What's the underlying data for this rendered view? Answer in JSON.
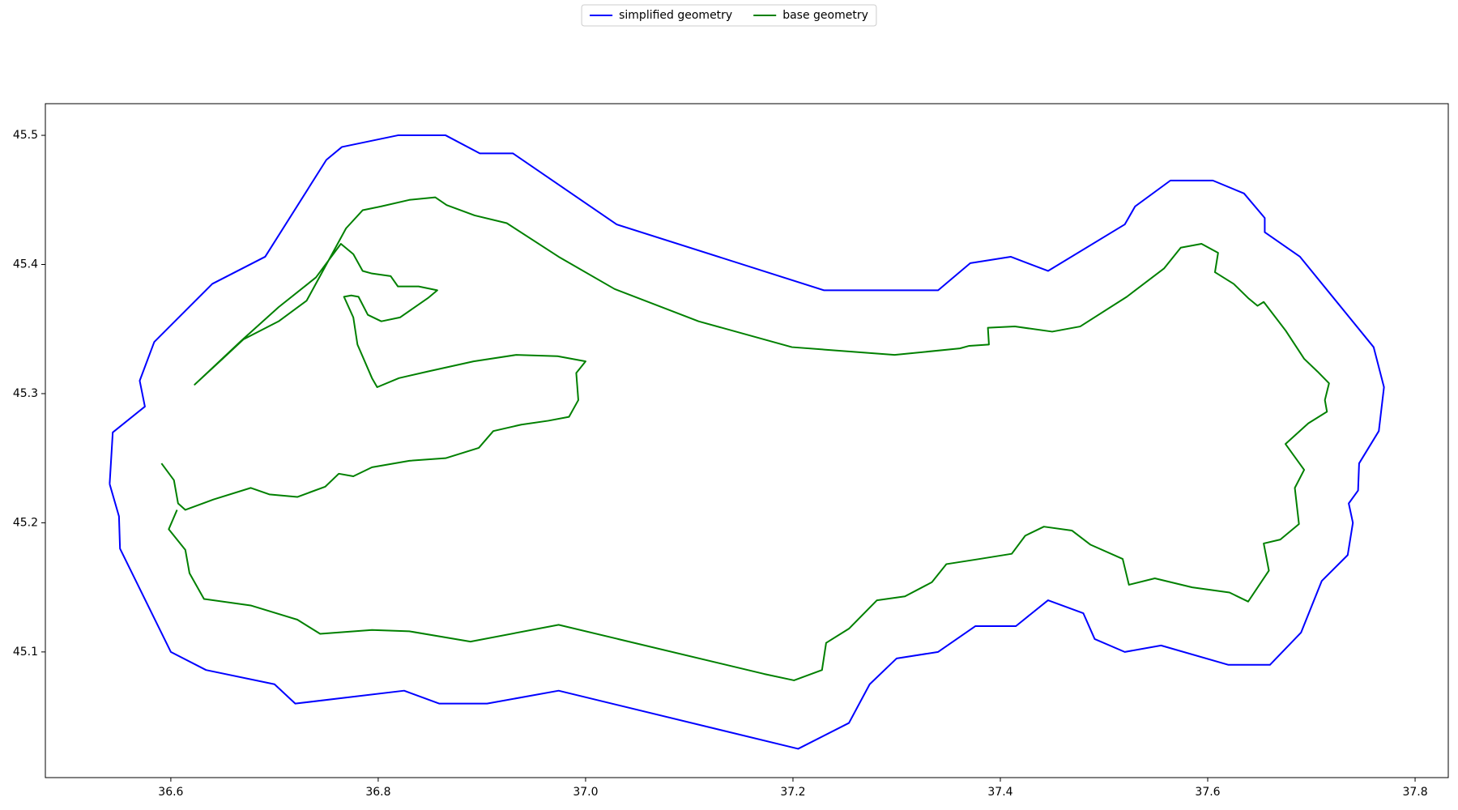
{
  "chart_data": {
    "type": "line",
    "legend": "upper center",
    "grid": false,
    "xlim": [
      36.479,
      37.832
    ],
    "ylim": [
      45.0027,
      45.5245
    ],
    "xticks": [
      36.6,
      36.8,
      {
        "value": 37.0,
        "label": "37.0"
      },
      37.2,
      37.4,
      37.6,
      37.8
    ],
    "yticks": [
      45.1,
      45.2,
      45.3,
      45.4,
      45.5
    ],
    "series": [
      {
        "name": "simplified geometry",
        "color": "#0000ff",
        "x": [
          36.541,
          36.544,
          36.575,
          36.57,
          36.584,
          36.64,
          36.691,
          36.75,
          36.765,
          36.819,
          36.865,
          36.898,
          36.93,
          37.03,
          37.23,
          37.34,
          37.371,
          37.41,
          37.446,
          37.52,
          37.53,
          37.564,
          37.605,
          37.635,
          37.655,
          37.655,
          37.689,
          37.76,
          37.77,
          37.765,
          37.746,
          37.745,
          37.736,
          37.74,
          37.735,
          37.71,
          37.69,
          37.66,
          37.62,
          37.555,
          37.52,
          37.491,
          37.48,
          37.446,
          37.415,
          37.376,
          37.34,
          37.3,
          37.274,
          37.254,
          37.205,
          36.974,
          36.905,
          36.859,
          36.825,
          36.72,
          36.7,
          36.634,
          36.6,
          36.551,
          36.55,
          36.541
        ],
        "y": [
          45.23,
          45.27,
          45.29,
          45.31,
          45.34,
          45.385,
          45.406,
          45.481,
          45.491,
          45.5,
          45.5,
          45.486,
          45.486,
          45.431,
          45.38,
          45.38,
          45.401,
          45.406,
          45.395,
          45.431,
          45.445,
          45.465,
          45.465,
          45.455,
          45.436,
          45.425,
          45.406,
          45.336,
          45.305,
          45.271,
          45.246,
          45.225,
          45.215,
          45.2,
          45.175,
          45.155,
          45.115,
          45.09,
          45.09,
          45.105,
          45.1,
          45.11,
          45.13,
          45.14,
          45.12,
          45.12,
          45.1,
          45.095,
          45.075,
          45.045,
          45.025,
          45.07,
          45.06,
          45.06,
          45.07,
          45.06,
          45.075,
          45.086,
          45.1,
          45.18,
          45.205,
          45.23
        ]
      },
      {
        "name": "base geometry",
        "color": "#008000",
        "x": [
          36.591,
          36.603,
          36.607,
          36.614,
          36.641,
          36.677,
          36.695,
          36.722,
          36.749,
          36.762,
          36.776,
          36.794,
          36.83,
          36.865,
          36.897,
          36.911,
          36.938,
          36.964,
          36.984,
          36.993,
          36.991,
          37.0,
          36.973,
          36.933,
          36.892,
          36.847,
          36.82,
          36.799,
          36.794,
          36.78,
          36.776,
          36.767,
          36.774,
          36.781,
          36.79,
          36.803,
          36.821,
          36.848,
          36.857,
          36.839,
          36.819,
          36.812,
          36.794,
          36.785,
          36.776,
          36.764,
          36.74,
          36.704,
          36.668,
          36.623,
          36.65,
          36.67,
          36.704,
          36.731,
          36.769,
          36.785,
          36.803,
          36.83,
          36.855,
          36.866,
          36.893,
          36.924,
          36.974,
          37.028,
          37.109,
          37.199,
          37.298,
          37.361,
          37.37,
          37.389,
          37.388,
          37.414,
          37.45,
          37.477,
          37.522,
          37.558,
          37.574,
          37.594,
          37.61,
          37.607,
          37.625,
          37.639,
          37.648,
          37.654,
          37.675,
          37.693,
          37.706,
          37.717,
          37.713,
          37.715,
          37.697,
          37.675,
          37.693,
          37.684,
          37.688,
          37.67,
          37.654,
          37.659,
          37.639,
          37.621,
          37.585,
          37.549,
          37.524,
          37.518,
          37.487,
          37.469,
          37.442,
          37.424,
          37.411,
          37.38,
          37.348,
          37.334,
          37.308,
          37.281,
          37.254,
          37.232,
          37.228,
          37.201,
          37.172,
          36.974,
          36.889,
          36.83,
          36.794,
          36.744,
          36.722,
          36.677,
          36.632,
          36.618,
          36.614,
          36.598,
          36.606
        ],
        "y": [
          45.246,
          45.233,
          45.215,
          45.21,
          45.218,
          45.227,
          45.222,
          45.22,
          45.228,
          45.238,
          45.236,
          45.243,
          45.248,
          45.25,
          45.258,
          45.271,
          45.276,
          45.279,
          45.282,
          45.295,
          45.316,
          45.325,
          45.329,
          45.33,
          45.325,
          45.317,
          45.312,
          45.305,
          45.312,
          45.338,
          45.359,
          45.375,
          45.376,
          45.375,
          45.361,
          45.356,
          45.359,
          45.374,
          45.38,
          45.383,
          45.383,
          45.391,
          45.393,
          45.395,
          45.408,
          45.416,
          45.39,
          45.367,
          45.341,
          45.307,
          45.327,
          45.342,
          45.356,
          45.372,
          45.428,
          45.442,
          45.445,
          45.45,
          45.452,
          45.446,
          45.438,
          45.432,
          45.406,
          45.381,
          45.356,
          45.336,
          45.33,
          45.335,
          45.337,
          45.338,
          45.351,
          45.352,
          45.348,
          45.352,
          45.375,
          45.397,
          45.413,
          45.416,
          45.409,
          45.394,
          45.385,
          45.374,
          45.368,
          45.371,
          45.349,
          45.327,
          45.317,
          45.308,
          45.295,
          45.286,
          45.277,
          45.261,
          45.241,
          45.227,
          45.199,
          45.187,
          45.184,
          45.163,
          45.139,
          45.146,
          45.15,
          45.157,
          45.152,
          45.172,
          45.183,
          45.194,
          45.197,
          45.19,
          45.176,
          45.172,
          45.168,
          45.154,
          45.143,
          45.14,
          45.118,
          45.107,
          45.086,
          45.078,
          45.083,
          45.121,
          45.108,
          45.116,
          45.117,
          45.114,
          45.125,
          45.136,
          45.141,
          45.161,
          45.179,
          45.195,
          45.21
        ]
      }
    ]
  }
}
